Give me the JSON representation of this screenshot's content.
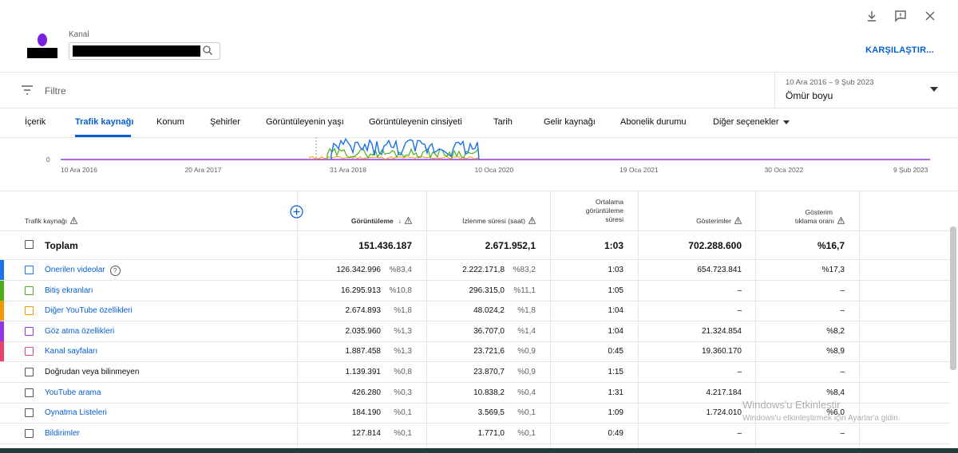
{
  "window": {
    "icons": [
      "download-icon",
      "feedback-icon",
      "close-icon"
    ]
  },
  "channel": {
    "label": "Kanal",
    "compare_label": "KARŞILAŞTIR..."
  },
  "filter": {
    "placeholder": "Filtre"
  },
  "date": {
    "range": "10 Ara 2016 – 9 Şub 2023",
    "value": "Ömür boyu"
  },
  "tabs": [
    {
      "label": "İçerik"
    },
    {
      "label": "Trafik kaynağı",
      "active": true
    },
    {
      "label": "Konum"
    },
    {
      "label": "Şehirler"
    },
    {
      "label": "Görüntüleyenin yaşı"
    },
    {
      "label": "Görüntüleyenin cinsiyeti"
    },
    {
      "label": "Tarih"
    },
    {
      "label": "Gelir kaynağı"
    },
    {
      "label": "Abonelik durumu"
    },
    {
      "label": "Diğer seçenekler"
    }
  ],
  "chart_data": {
    "type": "line",
    "y_zero_label": "0",
    "x_ticks": [
      "10 Ara 2016",
      "20 Ara 2017",
      "31 Ara 2018",
      "10 Oca 2020",
      "19 Oca 2021",
      "30 Oca 2022",
      "9 Şub 2023"
    ],
    "series": [
      {
        "color": "#1a73e8"
      },
      {
        "color": "#4caf1a"
      },
      {
        "color": "#f29900"
      },
      {
        "color": "#9334e6"
      }
    ]
  },
  "table": {
    "headers": {
      "source": "Trafik kaynağı",
      "views": "Görüntüleme",
      "watch": "İzlenme süresi (saat)",
      "avg_line1": "Ortalama",
      "avg_line2": "görüntüleme",
      "avg_line3": "süresi",
      "impressions": "Gösterimler",
      "ctr_line1": "Gösterim",
      "ctr_line2": "tıklama oranı"
    },
    "total": {
      "label": "Toplam",
      "views": "151.436.187",
      "watch": "2.671.952,1",
      "avg": "1:03",
      "impressions": "702.288.600",
      "ctr": "%16,7"
    },
    "rows": [
      {
        "label": "Önerilen videolar",
        "color": "#1a73e8",
        "help": "?",
        "views": "126.342.996",
        "views_pct": "%83,4",
        "watch": "2.222.171,8",
        "watch_pct": "%83,2",
        "avg": "1:03",
        "impressions": "654.723.841",
        "ctr": "%17,3",
        "link": true
      },
      {
        "label": "Bitiş ekranları",
        "color": "#4caf1a",
        "views": "16.295.913",
        "views_pct": "%10,8",
        "watch": "296.315,0",
        "watch_pct": "%11,1",
        "avg": "1:05",
        "impressions": "–",
        "ctr": "–",
        "link": true
      },
      {
        "label": "Diğer YouTube özellikleri",
        "color": "#f29900",
        "views": "2.674.893",
        "views_pct": "%1,8",
        "watch": "48.024,2",
        "watch_pct": "%1,8",
        "avg": "1:04",
        "impressions": "–",
        "ctr": "–",
        "link": true
      },
      {
        "label": "Göz atma özellikleri",
        "color": "#9334e6",
        "views": "2.035.960",
        "views_pct": "%1,3",
        "watch": "36.707,0",
        "watch_pct": "%1,4",
        "avg": "1:04",
        "impressions": "21.324.854",
        "ctr": "%8,2",
        "link": true
      },
      {
        "label": "Kanal sayfaları",
        "color": "#e8426e",
        "views": "1.887.458",
        "views_pct": "%1,3",
        "watch": "23.721,6",
        "watch_pct": "%0,9",
        "avg": "0:45",
        "impressions": "19.360.170",
        "ctr": "%8,9",
        "link": true
      },
      {
        "label": "Doğrudan veya bilinmeyen",
        "color": "",
        "views": "1.139.391",
        "views_pct": "%0,8",
        "watch": "23.870,7",
        "watch_pct": "%0,9",
        "avg": "1:15",
        "impressions": "–",
        "ctr": "–",
        "link": false
      },
      {
        "label": "YouTube arama",
        "color": "",
        "views": "426.280",
        "views_pct": "%0,3",
        "watch": "10.838,2",
        "watch_pct": "%0,4",
        "avg": "1:31",
        "impressions": "4.217.184",
        "ctr": "%8,4",
        "link": true
      },
      {
        "label": "Oynatma Listeleri",
        "color": "",
        "views": "184.190",
        "views_pct": "%0,1",
        "watch": "3.569,5",
        "watch_pct": "%0,1",
        "avg": "1:09",
        "impressions": "1.724.010",
        "ctr": "%6,0",
        "link": true
      },
      {
        "label": "Bildirimler",
        "color": "",
        "views": "127.814",
        "views_pct": "%0,1",
        "watch": "1.771,0",
        "watch_pct": "%0,1",
        "avg": "0:49",
        "impressions": "–",
        "ctr": "–",
        "link": true
      }
    ]
  },
  "watermark": {
    "line1": "Windows'u Etkinleştir",
    "line2": "Windows'u etkinleştirmek için Ayarlar'a gidin."
  }
}
